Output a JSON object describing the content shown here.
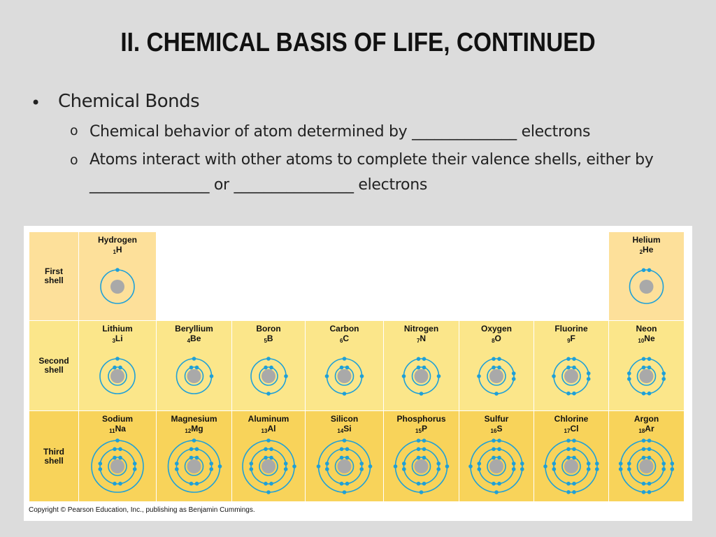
{
  "slide": {
    "title": "II. CHEMICAL BASIS OF LIFE, CONTINUED",
    "bullet_mark": "•",
    "sub_mark": "o",
    "bullet": "Chemical Bonds",
    "sub1": "Chemical behavior of atom determined by ______________ electrons",
    "sub2_line1": "Atoms interact with other atoms to complete their valence shells, either by",
    "sub2_line2": "________________ or ________________ electrons"
  },
  "figure": {
    "colors": {
      "row1": "#fde09a",
      "row2": "#fbe68a",
      "row3": "#f8d35a",
      "electron": "#1ea0d8",
      "nucleus": "#a9a9a9",
      "orbit": "#1ea0d8"
    },
    "shells": [
      {
        "label": "First shell"
      },
      {
        "label": "Second shell"
      },
      {
        "label": "Third shell"
      }
    ],
    "elements": [
      {
        "name": "Hydrogen",
        "number": "1",
        "symbol": "H",
        "row": 0,
        "col": 0,
        "shells": [
          1
        ]
      },
      {
        "name": "Helium",
        "number": "2",
        "symbol": "He",
        "row": 0,
        "col": 7,
        "shells": [
          2
        ]
      },
      {
        "name": "Lithium",
        "number": "3",
        "symbol": "Li",
        "row": 1,
        "col": 0,
        "shells": [
          2,
          1
        ]
      },
      {
        "name": "Beryllium",
        "number": "4",
        "symbol": "Be",
        "row": 1,
        "col": 1,
        "shells": [
          2,
          2
        ]
      },
      {
        "name": "Boron",
        "number": "5",
        "symbol": "B",
        "row": 1,
        "col": 2,
        "shells": [
          2,
          3
        ]
      },
      {
        "name": "Carbon",
        "number": "6",
        "symbol": "C",
        "row": 1,
        "col": 3,
        "shells": [
          2,
          4
        ]
      },
      {
        "name": "Nitrogen",
        "number": "7",
        "symbol": "N",
        "row": 1,
        "col": 4,
        "shells": [
          2,
          5
        ]
      },
      {
        "name": "Oxygen",
        "number": "8",
        "symbol": "O",
        "row": 1,
        "col": 5,
        "shells": [
          2,
          6
        ]
      },
      {
        "name": "Fluorine",
        "number": "9",
        "symbol": "F",
        "row": 1,
        "col": 6,
        "shells": [
          2,
          7
        ]
      },
      {
        "name": "Neon",
        "number": "10",
        "symbol": "Ne",
        "row": 1,
        "col": 7,
        "shells": [
          2,
          8
        ]
      },
      {
        "name": "Sodium",
        "number": "11",
        "symbol": "Na",
        "row": 2,
        "col": 0,
        "shells": [
          2,
          8,
          1
        ]
      },
      {
        "name": "Magnesium",
        "number": "12",
        "symbol": "Mg",
        "row": 2,
        "col": 1,
        "shells": [
          2,
          8,
          2
        ]
      },
      {
        "name": "Aluminum",
        "number": "13",
        "symbol": "Al",
        "row": 2,
        "col": 2,
        "shells": [
          2,
          8,
          3
        ]
      },
      {
        "name": "Silicon",
        "number": "14",
        "symbol": "Si",
        "row": 2,
        "col": 3,
        "shells": [
          2,
          8,
          4
        ]
      },
      {
        "name": "Phosphorus",
        "number": "15",
        "symbol": "P",
        "row": 2,
        "col": 4,
        "shells": [
          2,
          8,
          5
        ]
      },
      {
        "name": "Sulfur",
        "number": "16",
        "symbol": "S",
        "row": 2,
        "col": 5,
        "shells": [
          2,
          8,
          6
        ]
      },
      {
        "name": "Chlorine",
        "number": "17",
        "symbol": "Cl",
        "row": 2,
        "col": 6,
        "shells": [
          2,
          8,
          7
        ]
      },
      {
        "name": "Argon",
        "number": "18",
        "symbol": "Ar",
        "row": 2,
        "col": 7,
        "shells": [
          2,
          8,
          8
        ]
      }
    ],
    "copyright": "Copyright © Pearson Education, Inc., publishing as Benjamin Cummings."
  }
}
